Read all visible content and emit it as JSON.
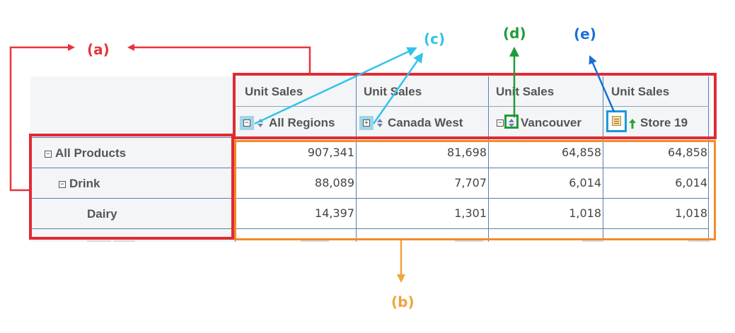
{
  "labels": {
    "a": "(a)",
    "b": "(b)",
    "c": "(c)",
    "d": "(d)",
    "e": "(e)"
  },
  "table": {
    "measure_label": "Unit Sales",
    "columns": [
      {
        "measure": "Unit Sales",
        "member": "All Regions",
        "expander": "collapse"
      },
      {
        "measure": "Unit Sales",
        "member": "Canada West",
        "expander": "expand"
      },
      {
        "measure": "Unit Sales",
        "member": "Vancouver",
        "expander": "collapse"
      },
      {
        "measure": "Unit Sales",
        "member": "Store 19",
        "expander": "none"
      }
    ],
    "rows": [
      {
        "label": "All Products",
        "level": 0,
        "expander": "collapse",
        "values": [
          "907,341",
          "81,698",
          "64,858",
          "64,858"
        ]
      },
      {
        "label": "Drink",
        "level": 1,
        "expander": "collapse",
        "values": [
          "88,089",
          "7,707",
          "6,014",
          "6,014"
        ]
      },
      {
        "label": "Dairy",
        "level": 2,
        "expander": "none",
        "values": [
          "14,397",
          "1,301",
          "1,018",
          "1,018"
        ]
      }
    ]
  },
  "colors": {
    "row_header_box": "#e02a33",
    "column_header_box": "#e02a33",
    "data_box": "#f4892a",
    "label_a": "#e8333a",
    "label_b": "#f2a33a",
    "label_c": "#33c3ea",
    "label_d": "#1f9c3a",
    "label_e": "#1a6fd6",
    "header_bg": "#f4f5f7",
    "grid_line": "#5b7ea8"
  },
  "icons": {
    "collapse": "minus-box-icon",
    "expand": "plus-box-icon",
    "sort": "sort-arrows-icon",
    "filter": "filter-icon",
    "drill_up": "up-arrow-icon"
  }
}
